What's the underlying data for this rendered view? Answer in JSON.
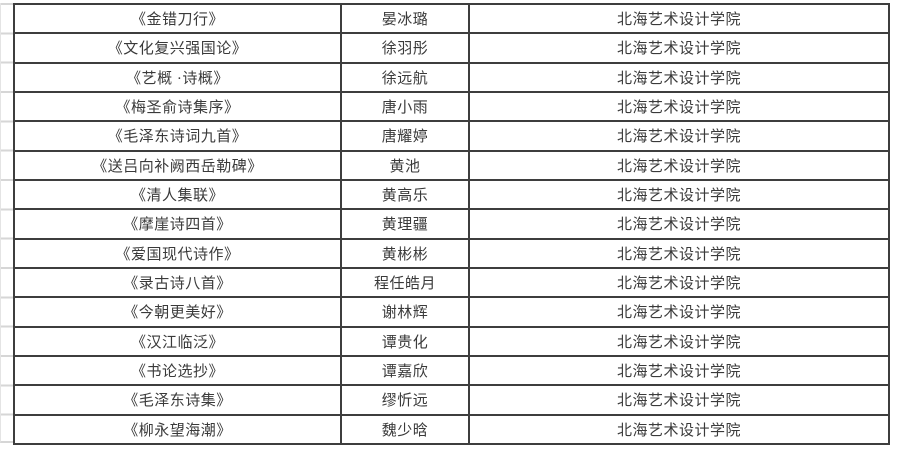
{
  "table": {
    "rows": [
      {
        "title": "《金错刀行》",
        "name": "晏冰璐",
        "institution": "北海艺术设计学院"
      },
      {
        "title": "《文化复兴强国论》",
        "name": "徐羽彤",
        "institution": "北海艺术设计学院"
      },
      {
        "title": "《艺概 ·诗概》",
        "name": "徐远航",
        "institution": "北海艺术设计学院"
      },
      {
        "title": "《梅圣俞诗集序》",
        "name": "唐小雨",
        "institution": "北海艺术设计学院"
      },
      {
        "title": "《毛泽东诗词九首》",
        "name": "唐耀婷",
        "institution": "北海艺术设计学院"
      },
      {
        "title": "《送吕向补阙西岳勒碑》",
        "name": "黄池",
        "institution": "北海艺术设计学院"
      },
      {
        "title": "《清人集联》",
        "name": "黄高乐",
        "institution": "北海艺术设计学院"
      },
      {
        "title": "《摩崖诗四首》",
        "name": "黄理疆",
        "institution": "北海艺术设计学院"
      },
      {
        "title": "《爱国现代诗作》",
        "name": "黄彬彬",
        "institution": "北海艺术设计学院"
      },
      {
        "title": "《录古诗八首》",
        "name": "程任皓月",
        "institution": "北海艺术设计学院"
      },
      {
        "title": "《今朝更美好》",
        "name": "谢林辉",
        "institution": "北海艺术设计学院"
      },
      {
        "title": "《汉江临泛》",
        "name": "谭贵化",
        "institution": "北海艺术设计学院"
      },
      {
        "title": "《书论选抄》",
        "name": "谭嘉欣",
        "institution": "北海艺术设计学院"
      },
      {
        "title": "《毛泽东诗集》",
        "name": "缪忻远",
        "institution": "北海艺术设计学院"
      },
      {
        "title": "《柳永望海潮》",
        "name": "魏少晗",
        "institution": "北海艺术设计学院"
      }
    ],
    "colors": {
      "border": "#3e3e3e",
      "text": "#3a3a3a",
      "background": "#ffffff",
      "edge_artifact": "#c9c9c9"
    }
  }
}
